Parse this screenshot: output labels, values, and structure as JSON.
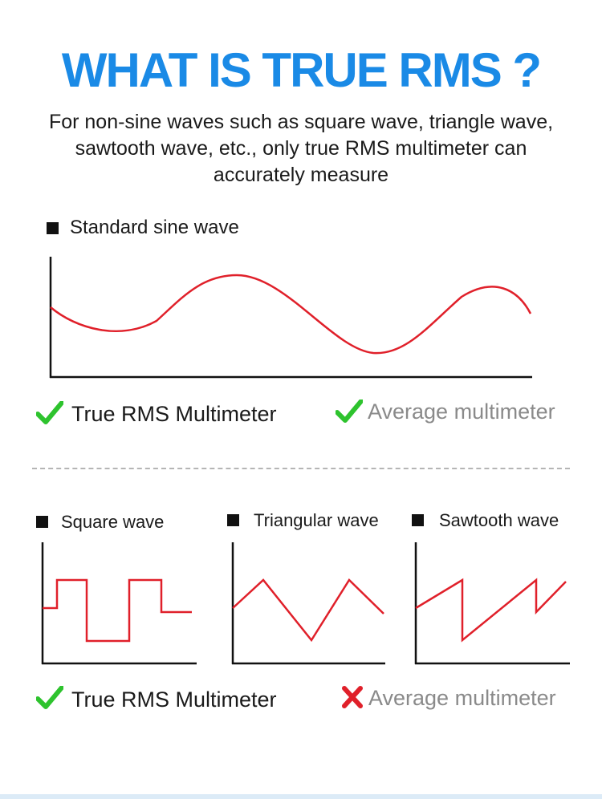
{
  "title": "WHAT IS TRUE RMS ?",
  "subtitle": "For non-sine waves such as square wave, triangle wave, sawtooth wave, etc., only true RMS multimeter can accurately measure",
  "colors": {
    "title": "#1a8ae6",
    "wave": "#e0202a",
    "check": "#2ec32e",
    "cross": "#e0202a",
    "average_text": "#8a8a8a"
  },
  "sine_section": {
    "label": "Standard sine wave",
    "true_rms": {
      "label": "True RMS Multimeter",
      "supported": true,
      "icon": "check-icon"
    },
    "average": {
      "label": "Average multimeter",
      "supported": true,
      "icon": "check-icon"
    }
  },
  "nonsine_section": {
    "waves": [
      {
        "label": "Square wave",
        "type": "square"
      },
      {
        "label": "Triangular wave",
        "type": "triangle"
      },
      {
        "label": "Sawtooth wave",
        "type": "sawtooth"
      }
    ],
    "true_rms": {
      "label": "True RMS Multimeter",
      "supported": true,
      "icon": "check-icon"
    },
    "average": {
      "label": "Average multimeter",
      "supported": false,
      "icon": "cross-icon"
    }
  }
}
